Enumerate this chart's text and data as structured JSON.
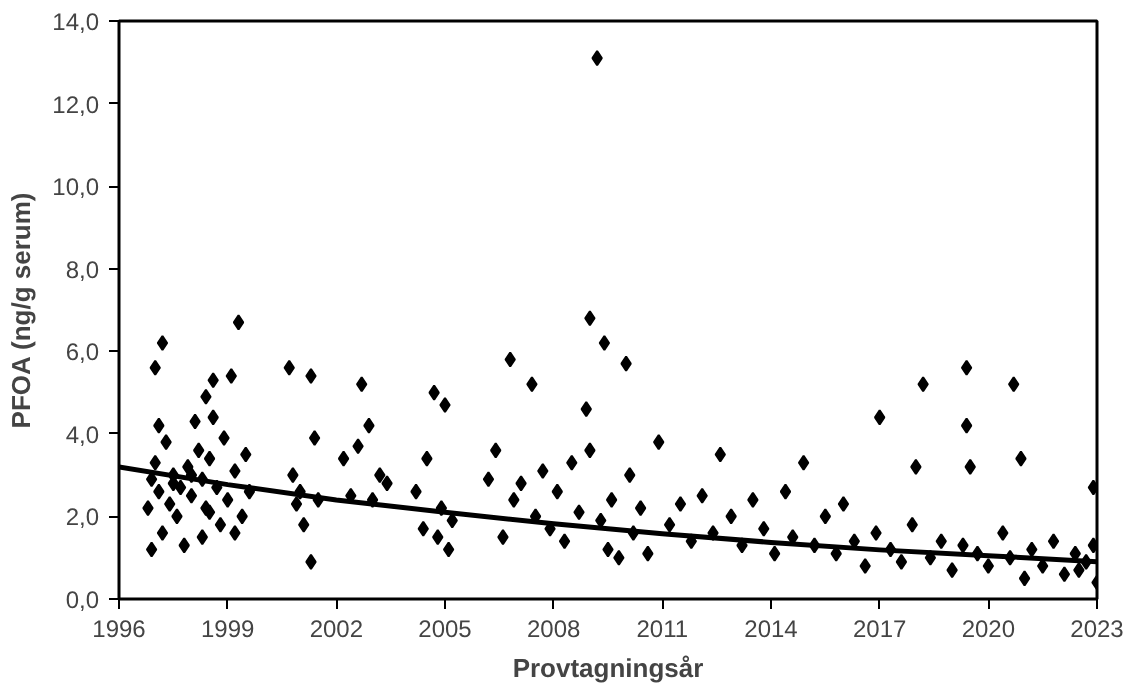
{
  "chart_data": {
    "type": "scatter",
    "xlabel": "Provtagningsår",
    "ylabel": "PFOA (ng/g serum)",
    "xlim": [
      1996,
      2023
    ],
    "ylim": [
      0,
      14
    ],
    "xticks": [
      1996,
      1999,
      2002,
      2005,
      2008,
      2011,
      2014,
      2017,
      2020,
      2023
    ],
    "yticks": [
      {
        "value": 0,
        "label": "0,0"
      },
      {
        "value": 2,
        "label": "2,0"
      },
      {
        "value": 4,
        "label": "4,0"
      },
      {
        "value": 6,
        "label": "6,0"
      },
      {
        "value": 8,
        "label": "8,0"
      },
      {
        "value": 10,
        "label": "10,0"
      },
      {
        "value": 12,
        "label": "12,0"
      },
      {
        "value": 14,
        "label": "14,0"
      }
    ],
    "grid": false,
    "series": [
      {
        "marker": "diamond",
        "color": "#000000",
        "x": [
          1996.8,
          1996.9,
          1997.0,
          1997.0,
          1997.1,
          1997.2,
          1997.2,
          1997.3,
          1997.4,
          1997.5,
          1997.6,
          1997.8,
          1997.9,
          1998.0,
          1998.1,
          1998.2,
          1998.3,
          1998.3,
          1998.4,
          1998.5,
          1998.5,
          1998.6,
          1998.7,
          1998.8,
          1998.9,
          1999.0,
          1999.1,
          1999.2,
          1999.3,
          1999.4,
          1999.5,
          1999.6,
          1997.1,
          1997.5,
          1998.0,
          1998.6,
          1999.2,
          1996.9,
          1997.7,
          1998.4,
          2000.7,
          2000.8,
          2000.9,
          2001.0,
          2001.1,
          2001.3,
          2001.3,
          2001.4,
          2001.5,
          2002.2,
          2002.4,
          2002.6,
          2002.7,
          2002.9,
          2003.0,
          2003.2,
          2003.4,
          2004.2,
          2004.4,
          2004.5,
          2004.7,
          2004.8,
          2004.9,
          2005.0,
          2005.1,
          2005.2,
          2006.2,
          2006.4,
          2006.6,
          2006.8,
          2006.9,
          2007.1,
          2007.4,
          2007.5,
          2007.7,
          2007.9,
          2008.1,
          2008.3,
          2008.5,
          2008.7,
          2008.9,
          2009.0,
          2009.0,
          2009.2,
          2009.3,
          2009.4,
          2009.5,
          2009.6,
          2009.8,
          2010.0,
          2010.1,
          2010.2,
          2010.4,
          2010.6,
          2010.9,
          2011.2,
          2011.5,
          2011.8,
          2012.1,
          2012.4,
          2012.6,
          2012.9,
          2013.2,
          2013.5,
          2013.8,
          2014.1,
          2014.4,
          2014.6,
          2014.9,
          2015.2,
          2015.5,
          2015.8,
          2016.0,
          2016.3,
          2016.6,
          2016.9,
          2017.0,
          2017.3,
          2017.6,
          2017.9,
          2018.0,
          2018.2,
          2018.4,
          2018.7,
          2019.0,
          2019.3,
          2019.4,
          2019.4,
          2019.5,
          2019.7,
          2020.0,
          2020.4,
          2020.6,
          2020.7,
          2020.9,
          2021.0,
          2021.2,
          2021.5,
          2021.8,
          2022.1,
          2022.4,
          2022.7,
          2022.9,
          2023.0,
          2022.9,
          2022.5
        ],
        "values": [
          2.2,
          2.9,
          3.3,
          5.6,
          2.6,
          6.2,
          1.6,
          3.8,
          2.3,
          3.0,
          2.0,
          1.3,
          3.2,
          2.5,
          4.3,
          3.6,
          1.5,
          2.9,
          4.9,
          2.1,
          3.4,
          5.3,
          2.7,
          1.8,
          3.9,
          2.4,
          5.4,
          3.1,
          6.7,
          2.0,
          3.5,
          2.6,
          4.2,
          2.8,
          3.0,
          4.4,
          1.6,
          1.2,
          2.7,
          2.2,
          5.6,
          3.0,
          2.3,
          2.6,
          1.8,
          5.4,
          0.9,
          3.9,
          2.4,
          3.4,
          2.5,
          3.7,
          5.2,
          4.2,
          2.4,
          3.0,
          2.8,
          2.6,
          1.7,
          3.4,
          5.0,
          1.5,
          2.2,
          4.7,
          1.2,
          1.9,
          2.9,
          3.6,
          1.5,
          5.8,
          2.4,
          2.8,
          5.2,
          2.0,
          3.1,
          1.7,
          2.6,
          1.4,
          3.3,
          2.1,
          4.6,
          6.8,
          3.6,
          13.1,
          1.9,
          6.2,
          1.2,
          2.4,
          1.0,
          5.7,
          3.0,
          1.6,
          2.2,
          1.1,
          3.8,
          1.8,
          2.3,
          1.4,
          2.5,
          1.6,
          3.5,
          2.0,
          1.3,
          2.4,
          1.7,
          1.1,
          2.6,
          1.5,
          3.3,
          1.3,
          2.0,
          1.1,
          2.3,
          1.4,
          0.8,
          1.6,
          4.4,
          1.2,
          0.9,
          1.8,
          3.2,
          5.2,
          1.0,
          1.4,
          0.7,
          1.3,
          4.2,
          5.6,
          3.2,
          1.1,
          0.8,
          1.6,
          1.0,
          5.2,
          3.4,
          0.5,
          1.2,
          0.8,
          1.4,
          0.6,
          1.1,
          0.9,
          2.7,
          0.4,
          1.3,
          0.7
        ]
      },
      {
        "type": "line",
        "color": "#000000",
        "x": [
          1996,
          1999,
          2002,
          2005,
          2008,
          2011,
          2014,
          2017,
          2020,
          2023
        ],
        "values": [
          3.2,
          2.77,
          2.4,
          2.1,
          1.82,
          1.58,
          1.37,
          1.19,
          1.05,
          0.9
        ]
      }
    ]
  }
}
